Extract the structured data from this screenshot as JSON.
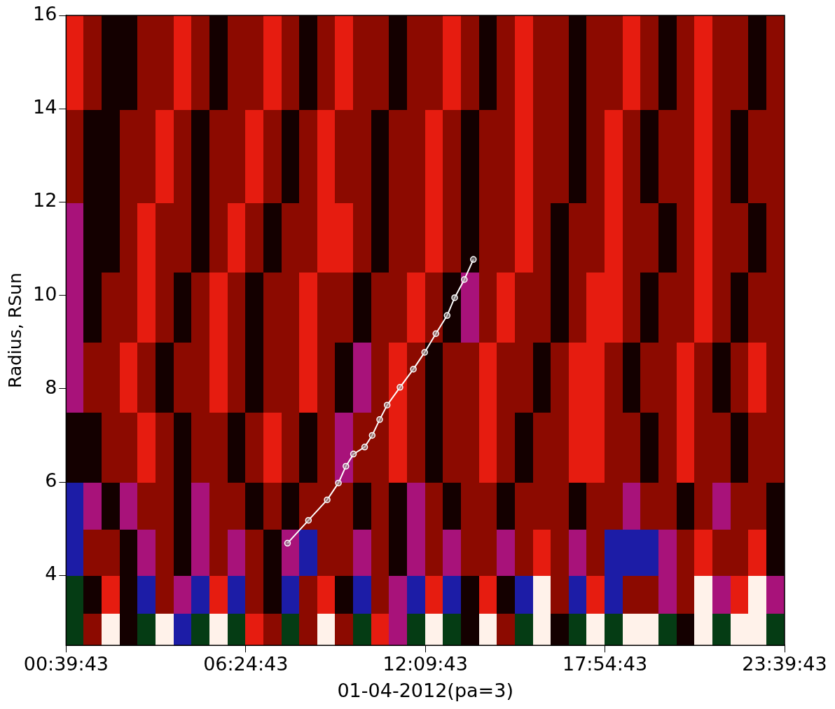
{
  "chart_data": {
    "type": "heatmap",
    "x_label": "01-04-2012(pa=3)",
    "y_label": "Radius, RSun",
    "xlim": [
      0.6619,
      23.6619
    ],
    "xticks": [
      {
        "value": 0.6619,
        "label": "00:39:43"
      },
      {
        "value": 6.4119,
        "label": "06:24:43"
      },
      {
        "value": 12.1619,
        "label": "12:09:43"
      },
      {
        "value": 17.9119,
        "label": "17:54:43"
      },
      {
        "value": 23.6619,
        "label": "23:39:43"
      }
    ],
    "ylim": [
      2.5,
      16
    ],
    "yticks": [
      4,
      6,
      8,
      10,
      12,
      14,
      16
    ],
    "grid": false,
    "heatmap": {
      "x_edges": [
        0.6619,
        1.2369,
        1.8119,
        2.3869,
        2.9619,
        3.5369,
        4.1119,
        4.6869,
        5.2619,
        5.8369,
        6.4119,
        6.9869,
        7.5619,
        8.1369,
        8.7119,
        9.2869,
        9.8619,
        10.4369,
        11.0119,
        11.5869,
        12.1619,
        12.7369,
        13.3119,
        13.8869,
        14.4619,
        15.0369,
        15.6119,
        16.1869,
        16.7619,
        17.3369,
        17.9119,
        18.4869,
        19.0619,
        19.6369,
        20.2119,
        20.7869,
        21.3619,
        21.9369,
        22.5119,
        23.0869,
        23.6619
      ],
      "y_edges": [
        2.5,
        3.2,
        4.0,
        5.0,
        6.0,
        7.5,
        9.0,
        10.5,
        12.0,
        14.0,
        16.0
      ],
      "cells": [
        [
          -3,
          1,
          3,
          0,
          -3,
          3,
          -2,
          -3,
          3,
          -3,
          2,
          1,
          -3,
          1,
          3,
          1,
          -3,
          2,
          -1,
          -3,
          3,
          -3,
          0,
          3,
          1,
          -3,
          3,
          0,
          -3,
          3,
          -3,
          3,
          3,
          -3,
          0,
          3,
          -3,
          3,
          3,
          -3
        ],
        [
          -3,
          0,
          2,
          0,
          -2,
          1,
          -1,
          -2,
          2,
          -2,
          1,
          0,
          -2,
          1,
          2,
          0,
          -2,
          1,
          -1,
          -2,
          2,
          -2,
          0,
          2,
          0,
          -2,
          3,
          1,
          -2,
          2,
          -2,
          1,
          1,
          -1,
          1,
          3,
          -1,
          2,
          3,
          -1
        ],
        [
          -2,
          1,
          1,
          0,
          -1,
          1,
          0,
          -1,
          1,
          -1,
          1,
          0,
          -1,
          -2,
          1,
          1,
          -1,
          1,
          0,
          -1,
          1,
          -1,
          1,
          1,
          -1,
          1,
          2,
          1,
          -1,
          1,
          -2,
          -2,
          -2,
          -1,
          1,
          2,
          1,
          1,
          2,
          0
        ],
        [
          -2,
          -1,
          0,
          -1,
          1,
          1,
          0,
          -1,
          1,
          1,
          0,
          1,
          0,
          1,
          1,
          1,
          0,
          1,
          0,
          -1,
          1,
          0,
          1,
          1,
          0,
          1,
          1,
          1,
          0,
          1,
          1,
          -1,
          1,
          1,
          0,
          1,
          -1,
          1,
          1,
          0
        ],
        [
          0,
          0,
          1,
          1,
          2,
          1,
          0,
          1,
          1,
          0,
          1,
          2,
          1,
          0,
          1,
          -1,
          1,
          1,
          2,
          1,
          0,
          1,
          1,
          2,
          1,
          0,
          1,
          1,
          2,
          2,
          1,
          1,
          0,
          1,
          2,
          1,
          1,
          0,
          1,
          1
        ],
        [
          -1,
          1,
          1,
          2,
          1,
          0,
          1,
          1,
          2,
          1,
          0,
          1,
          1,
          2,
          1,
          0,
          -1,
          1,
          2,
          1,
          0,
          1,
          1,
          2,
          1,
          1,
          0,
          1,
          2,
          2,
          1,
          0,
          1,
          1,
          2,
          1,
          0,
          1,
          2,
          1
        ],
        [
          -1,
          0,
          1,
          1,
          2,
          1,
          0,
          1,
          2,
          1,
          0,
          1,
          1,
          2,
          1,
          1,
          0,
          1,
          1,
          2,
          1,
          0,
          -1,
          1,
          2,
          1,
          1,
          0,
          1,
          2,
          2,
          1,
          0,
          1,
          1,
          2,
          1,
          0,
          1,
          1
        ],
        [
          -1,
          0,
          0,
          1,
          2,
          1,
          1,
          0,
          1,
          2,
          1,
          0,
          1,
          1,
          2,
          2,
          1,
          0,
          1,
          1,
          2,
          1,
          0,
          1,
          1,
          2,
          1,
          0,
          1,
          1,
          2,
          1,
          1,
          0,
          1,
          2,
          1,
          1,
          0,
          1
        ],
        [
          1,
          0,
          0,
          1,
          1,
          2,
          1,
          0,
          1,
          1,
          2,
          1,
          0,
          1,
          2,
          1,
          1,
          0,
          1,
          1,
          2,
          1,
          0,
          1,
          1,
          2,
          1,
          1,
          0,
          1,
          2,
          1,
          0,
          1,
          1,
          2,
          1,
          0,
          1,
          1
        ],
        [
          2,
          1,
          0,
          0,
          1,
          1,
          2,
          1,
          0,
          1,
          1,
          2,
          1,
          0,
          1,
          2,
          1,
          1,
          0,
          1,
          1,
          2,
          1,
          0,
          1,
          2,
          1,
          1,
          0,
          1,
          1,
          2,
          1,
          0,
          1,
          2,
          1,
          1,
          0,
          1
        ]
      ]
    },
    "track": {
      "x": [
        7.75,
        8.42,
        9.02,
        9.38,
        9.62,
        9.86,
        10.22,
        10.46,
        10.7,
        10.94,
        11.35,
        11.78,
        12.14,
        12.5,
        12.86,
        13.1,
        13.41,
        13.7
      ],
      "y": [
        4.69,
        5.18,
        5.62,
        5.98,
        6.34,
        6.6,
        6.75,
        7.0,
        7.34,
        7.65,
        8.03,
        8.42,
        8.78,
        9.18,
        9.57,
        9.95,
        10.34,
        10.77
      ],
      "color": "#ffffff",
      "marker": "circle",
      "line_style": "solid"
    }
  }
}
